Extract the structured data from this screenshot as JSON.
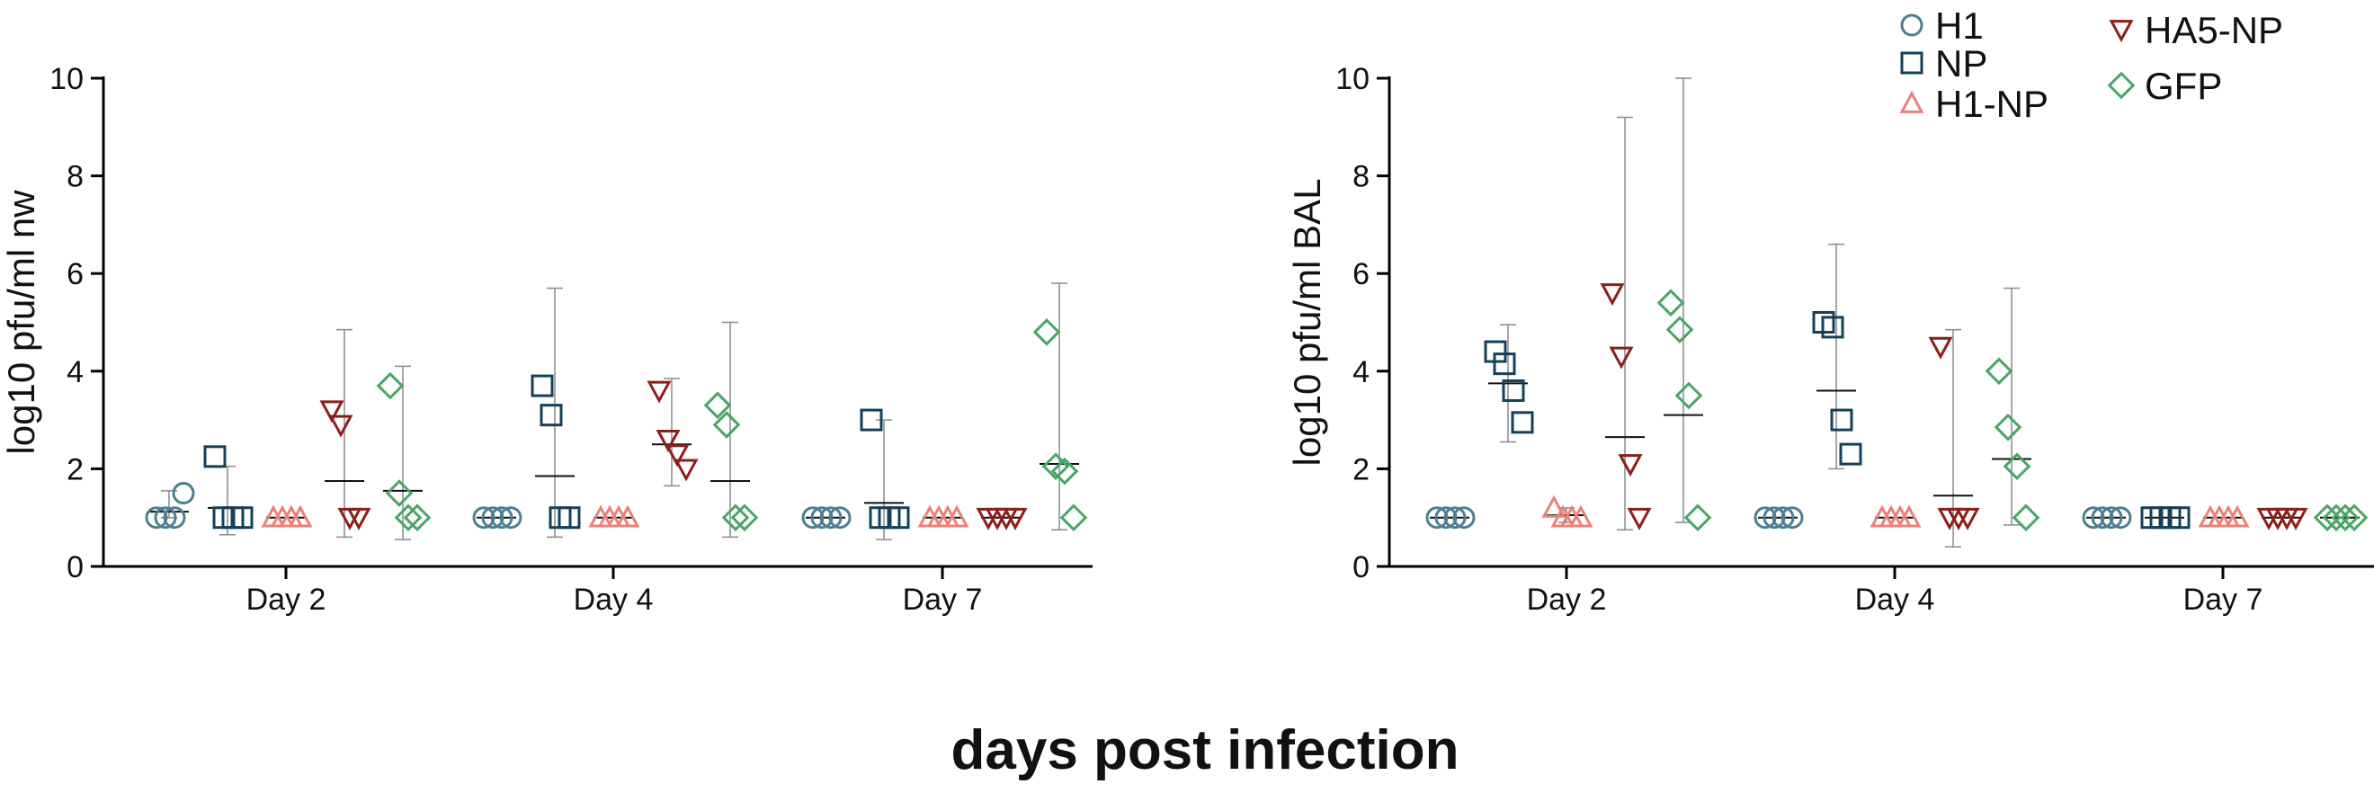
{
  "figure": {
    "xlabel": "days post infection"
  },
  "groups": [
    {
      "name": "H1",
      "color": "#4e7e8f",
      "marker": "circle"
    },
    {
      "name": "NP",
      "color": "#14405a",
      "marker": "square"
    },
    {
      "name": "H1-NP",
      "color": "#e8827a",
      "marker": "triangle-up"
    },
    {
      "name": "HA5-NP",
      "color": "#8b1f1a",
      "marker": "triangle-down"
    },
    {
      "name": "GFP",
      "color": "#4aa566",
      "marker": "diamond"
    }
  ],
  "chart_data": [
    {
      "type": "scatter",
      "ylabel": "log10 pfu/ml nw",
      "ylim": [
        0,
        10
      ],
      "yticks": [
        0,
        2,
        4,
        6,
        8,
        10
      ],
      "categories": [
        "Day 2",
        "Day 4",
        "Day 7"
      ],
      "error_bars": "mean ± range",
      "series": [
        {
          "name": "H1",
          "points": [
            [
              1,
              1,
              1,
              1.5
            ],
            [
              1,
              1,
              1,
              1
            ],
            [
              1,
              1,
              1,
              1
            ]
          ],
          "mean": [
            1.12,
            1,
            1
          ],
          "err": [
            [
              1,
              1.55
            ],
            [
              1,
              1
            ],
            [
              1,
              1
            ]
          ]
        },
        {
          "name": "NP",
          "points": [
            [
              2.25,
              1,
              1,
              1
            ],
            [
              3.7,
              3.1,
              1,
              1
            ],
            [
              3,
              1,
              1,
              1
            ]
          ],
          "mean": [
            1.2,
            1.85,
            1.3
          ],
          "err": [
            [
              0.65,
              2.05
            ],
            [
              0.6,
              5.7
            ],
            [
              0.55,
              3
            ]
          ]
        },
        {
          "name": "H1-NP",
          "points": [
            [
              1,
              1,
              1,
              1
            ],
            [
              1,
              1,
              1,
              1
            ],
            [
              1,
              1,
              1,
              1
            ]
          ],
          "mean": [
            1,
            1,
            1
          ],
          "err": [
            [
              1,
              1
            ],
            [
              1,
              1
            ],
            [
              1,
              1
            ]
          ]
        },
        {
          "name": "HA5-NP",
          "points": [
            [
              3.2,
              2.9,
              1,
              1
            ],
            [
              3.6,
              2.6,
              2.3,
              2
            ],
            [
              1,
              1,
              1,
              1
            ]
          ],
          "mean": [
            1.75,
            2.5,
            1
          ],
          "err": [
            [
              0.6,
              4.85
            ],
            [
              1.65,
              3.85
            ],
            [
              1,
              1
            ]
          ]
        },
        {
          "name": "GFP",
          "points": [
            [
              3.7,
              1.5,
              1,
              1
            ],
            [
              3.3,
              2.9,
              1,
              1
            ],
            [
              4.8,
              2.05,
              1.95,
              1
            ]
          ],
          "mean": [
            1.55,
            1.75,
            2.1
          ],
          "err": [
            [
              0.55,
              4.1
            ],
            [
              0.6,
              5
            ],
            [
              0.75,
              5.8
            ]
          ]
        }
      ]
    },
    {
      "type": "scatter",
      "ylabel": "log10 pfu/ml BAL",
      "ylim": [
        0,
        10
      ],
      "yticks": [
        0,
        2,
        4,
        6,
        8,
        10
      ],
      "categories": [
        "Day 2",
        "Day 4",
        "Day 7"
      ],
      "error_bars": "mean ± range",
      "legend": {
        "placement": "top-right",
        "entries": [
          "H1",
          "NP",
          "H1-NP",
          "HA5-NP",
          "GFP"
        ]
      },
      "series": [
        {
          "name": "H1",
          "points": [
            [
              1,
              1,
              1,
              1
            ],
            [
              1,
              1,
              1,
              1
            ],
            [
              1,
              1,
              1,
              1
            ]
          ],
          "mean": [
            1,
            1,
            1
          ],
          "err": [
            [
              1,
              1
            ],
            [
              1,
              1
            ],
            [
              1,
              1
            ]
          ]
        },
        {
          "name": "NP",
          "points": [
            [
              4.4,
              4.15,
              3.6,
              2.95
            ],
            [
              5,
              4.9,
              3,
              2.3
            ],
            [
              1,
              1,
              1,
              1
            ]
          ],
          "mean": [
            3.75,
            3.6,
            1
          ],
          "err": [
            [
              2.55,
              4.95
            ],
            [
              2,
              6.6
            ],
            [
              1,
              1
            ]
          ]
        },
        {
          "name": "H1-NP",
          "points": [
            [
              1.2,
              1,
              1,
              1
            ],
            [
              1,
              1,
              1,
              1
            ],
            [
              1,
              1,
              1,
              1
            ]
          ],
          "mean": [
            1.05,
            1,
            1
          ],
          "err": [
            [
              0.9,
              1.2
            ],
            [
              1,
              1
            ],
            [
              1,
              1
            ]
          ]
        },
        {
          "name": "HA5-NP",
          "points": [
            [
              5.6,
              4.3,
              2.1,
              1
            ],
            [
              4.5,
              1,
              1,
              1
            ],
            [
              1,
              1,
              1,
              1
            ]
          ],
          "mean": [
            2.65,
            1.45,
            1
          ],
          "err": [
            [
              0.75,
              9.2
            ],
            [
              0.4,
              4.85
            ],
            [
              1,
              1
            ]
          ]
        },
        {
          "name": "GFP",
          "points": [
            [
              5.4,
              4.85,
              3.5,
              1
            ],
            [
              4,
              2.85,
              2.05,
              1
            ],
            [
              1,
              1,
              1,
              1
            ]
          ],
          "mean": [
            3.1,
            2.2,
            1
          ],
          "err": [
            [
              0.9,
              10
            ],
            [
              0.85,
              5.7
            ],
            [
              1,
              1
            ]
          ]
        }
      ]
    }
  ]
}
